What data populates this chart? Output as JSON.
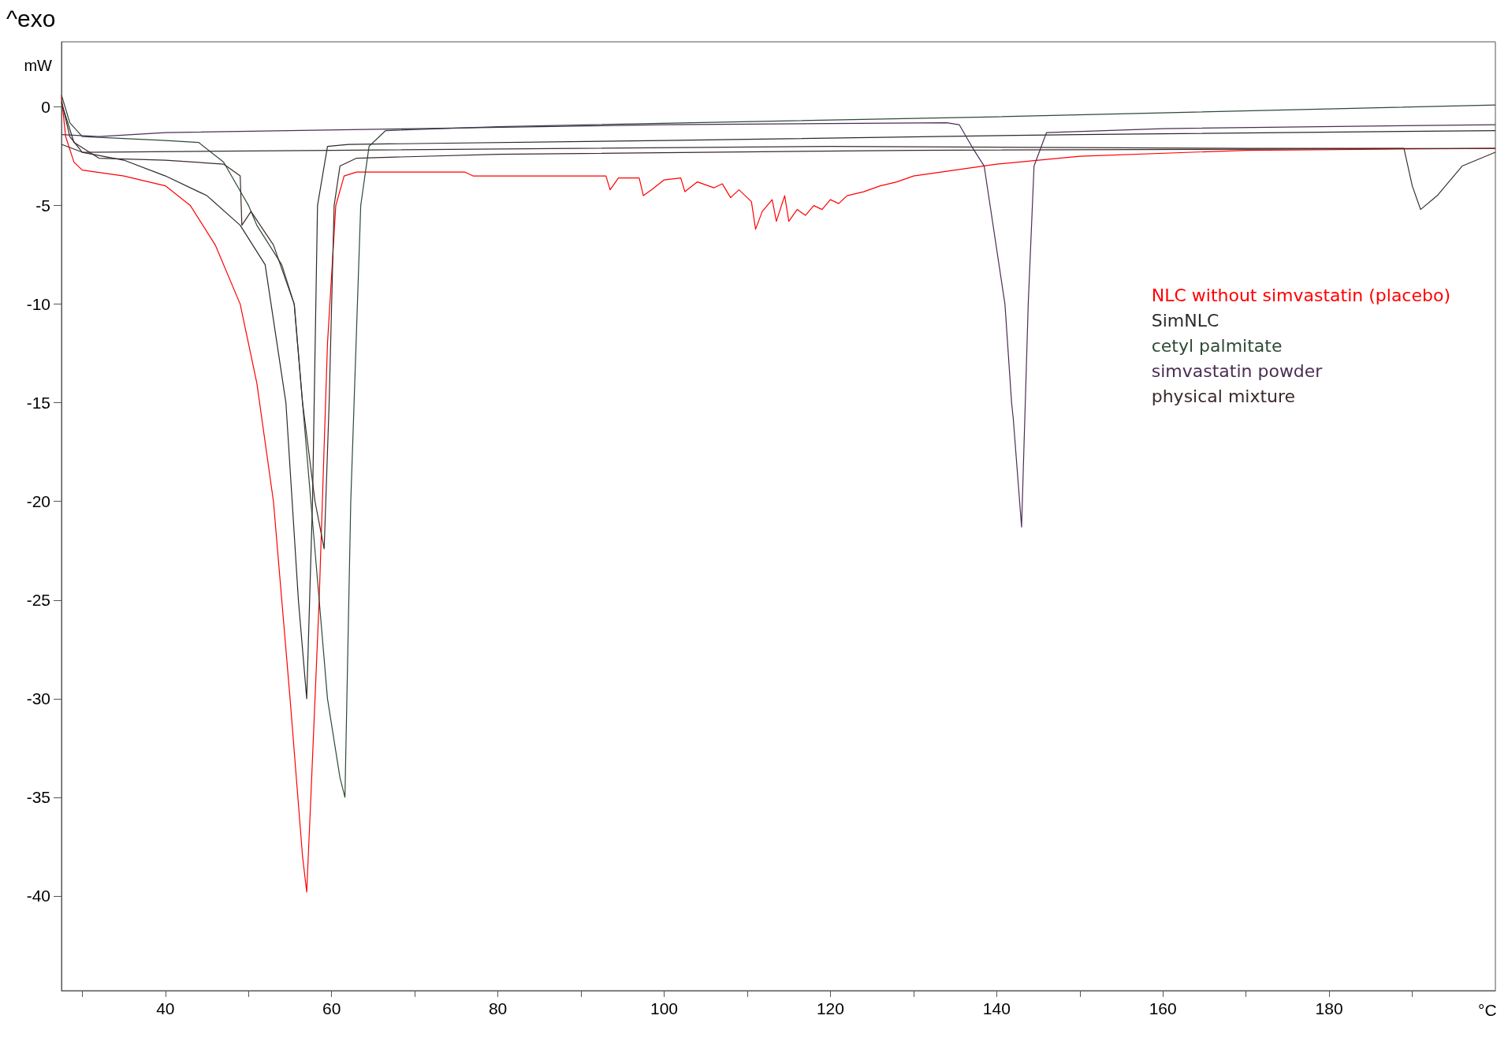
{
  "chart_data": {
    "type": "line",
    "annotations": [
      "^exo"
    ],
    "xlabel": "°C",
    "ylabel": "mW",
    "xlim": [
      27.5,
      200
    ],
    "ylim": [
      -44.8,
      3.3
    ],
    "xticks": [
      {
        "value": 30,
        "label": null
      },
      40,
      {
        "value": 50,
        "label": null
      },
      60,
      {
        "value": 70,
        "label": null
      },
      80,
      {
        "value": 90,
        "label": null
      },
      100,
      {
        "value": 110,
        "label": null
      },
      120,
      {
        "value": 130,
        "label": null
      },
      140,
      {
        "value": 150,
        "label": null
      },
      160,
      {
        "value": 170,
        "label": null
      },
      180,
      {
        "value": 190,
        "label": null
      }
    ],
    "yticks": [
      -40,
      -35,
      -30,
      -25,
      -20,
      -15,
      -10,
      -5,
      0
    ],
    "grid": false,
    "legend": "right",
    "marker": "none",
    "line_style": "solid",
    "series": [
      {
        "name": "NLC without simvastatin (placebo)",
        "color": "#ff0000",
        "x": [
          27.5,
          28,
          29,
          30,
          35,
          40,
          43,
          46,
          49,
          51,
          53,
          55,
          56.5,
          57,
          57.5,
          58.5,
          59.5,
          60.5,
          61.5,
          63,
          76,
          77,
          93,
          93.5,
          94.5,
          97,
          97.5,
          98.5,
          100,
          102,
          102.5,
          104,
          106,
          107,
          108,
          109,
          110.5,
          111,
          111.8,
          113,
          113.5,
          114.5,
          115,
          116,
          117,
          118,
          119,
          120,
          121,
          122,
          124,
          126,
          128,
          130,
          135,
          140,
          150,
          170,
          200
        ],
        "values": [
          0.5,
          -1.5,
          -2.8,
          -3.2,
          -3.5,
          -4,
          -5,
          -7,
          -10,
          -14,
          -20,
          -30,
          -38,
          -39.8,
          -35,
          -25,
          -12,
          -5,
          -3.5,
          -3.3,
          -3.3,
          -3.5,
          -3.5,
          -4.2,
          -3.6,
          -3.6,
          -4.5,
          -4.2,
          -3.7,
          -3.6,
          -4.3,
          -3.8,
          -4.1,
          -3.9,
          -4.6,
          -4.2,
          -4.8,
          -6.2,
          -5.3,
          -4.7,
          -5.8,
          -4.5,
          -5.8,
          -5.2,
          -5.5,
          -5,
          -5.2,
          -4.7,
          -4.9,
          -4.5,
          -4.3,
          -4,
          -3.8,
          -3.5,
          -3.2,
          -2.9,
          -2.5,
          -2.2,
          -2.1
        ]
      },
      {
        "name": "SimNLC",
        "color": "#2b2b2b",
        "x": [
          27.5,
          28.5,
          30,
          35,
          40,
          45,
          49,
          52,
          54.5,
          56,
          57,
          57.7,
          58.3,
          59.5,
          62,
          100,
          150,
          200
        ],
        "values": [
          0.3,
          -1.5,
          -2.3,
          -2.7,
          -3.5,
          -4.5,
          -6,
          -8,
          -15,
          -25,
          -30,
          -20,
          -5,
          -2,
          -1.9,
          -1.7,
          -1.4,
          -1.2
        ]
      },
      {
        "name": "cetyl palmitate",
        "color": "#2e4a36",
        "x": [
          27.5,
          28.5,
          30,
          35,
          40,
          44,
          47,
          50,
          51,
          54,
          55.5,
          57.5,
          59.5,
          61,
          61.6,
          62.3,
          63.5,
          64.5,
          66.5,
          80,
          140,
          200
        ],
        "values": [
          0.6,
          -0.8,
          -1.5,
          -1.6,
          -1.7,
          -1.8,
          -2.8,
          -5,
          -6,
          -8,
          -10,
          -20,
          -30,
          -34,
          -35,
          -20,
          -5,
          -2,
          -1.2,
          -1,
          -0.5,
          0.1
        ]
      },
      {
        "name": "simvastatin powder",
        "color": "#4b2e55",
        "x": [
          27.5,
          32,
          40,
          70,
          100,
          134,
          135.5,
          137,
          138.5,
          141,
          141.8,
          142,
          143,
          143.8,
          144.5,
          146,
          160,
          200
        ],
        "values": [
          -1.4,
          -1.5,
          -1.3,
          -1.1,
          -0.9,
          -0.8,
          -0.9,
          -2,
          -3,
          -10,
          -15,
          -15.8,
          -21.3,
          -10,
          -3,
          -1.3,
          -1.1,
          -0.9
        ]
      },
      {
        "color": "#3a3030",
        "x": [
          27.5,
          30,
          60,
          120,
          170,
          189,
          190,
          191,
          193,
          196,
          200
        ],
        "values": [
          -1.9,
          -2.3,
          -2.2,
          -2,
          -2.1,
          -2.1,
          -4,
          -5.2,
          -4.5,
          -3,
          -2.3
        ]
      },
      {
        "name": "physical mixture",
        "color": "#3d2b2b",
        "x": [
          27.5,
          29,
          32,
          40,
          47,
          49,
          49.2,
          50.3,
          53,
          55.5,
          56.5,
          58,
          59.1,
          59.7,
          60.3,
          61,
          63,
          80,
          130,
          200
        ],
        "values": [
          0.2,
          -1.8,
          -2.6,
          -2.7,
          -2.9,
          -3.5,
          -6,
          -5.3,
          -7,
          -10,
          -15,
          -20,
          -22.4,
          -15,
          -5,
          -3,
          -2.6,
          -2.4,
          -2.2,
          -2.1
        ]
      }
    ]
  }
}
